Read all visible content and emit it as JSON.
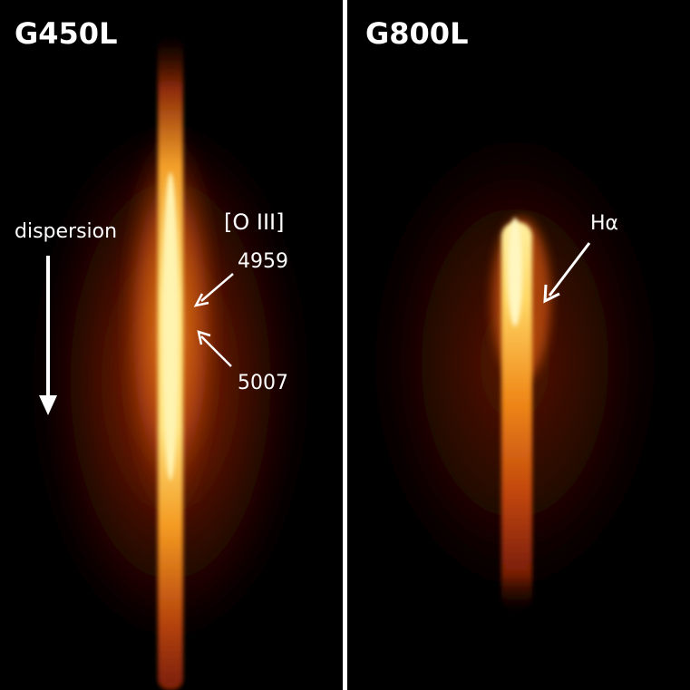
{
  "panels": [
    {
      "title": "G450L",
      "annotations": {
        "dispersion": "dispersion",
        "line_name": "[O III]",
        "line_a": "4959",
        "line_b": "5007"
      }
    },
    {
      "title": "G800L",
      "annotations": {
        "line_name": "Hα"
      }
    }
  ],
  "colors": {
    "background": "#000000",
    "divider": "#ffffff",
    "label": "#ffffff",
    "glow_core": "#fff2a0",
    "glow_mid": "#f59a1e",
    "glow_outer": "#7a1a08"
  },
  "icons": [
    "down-arrow-icon",
    "pointer-arrow-icon"
  ]
}
